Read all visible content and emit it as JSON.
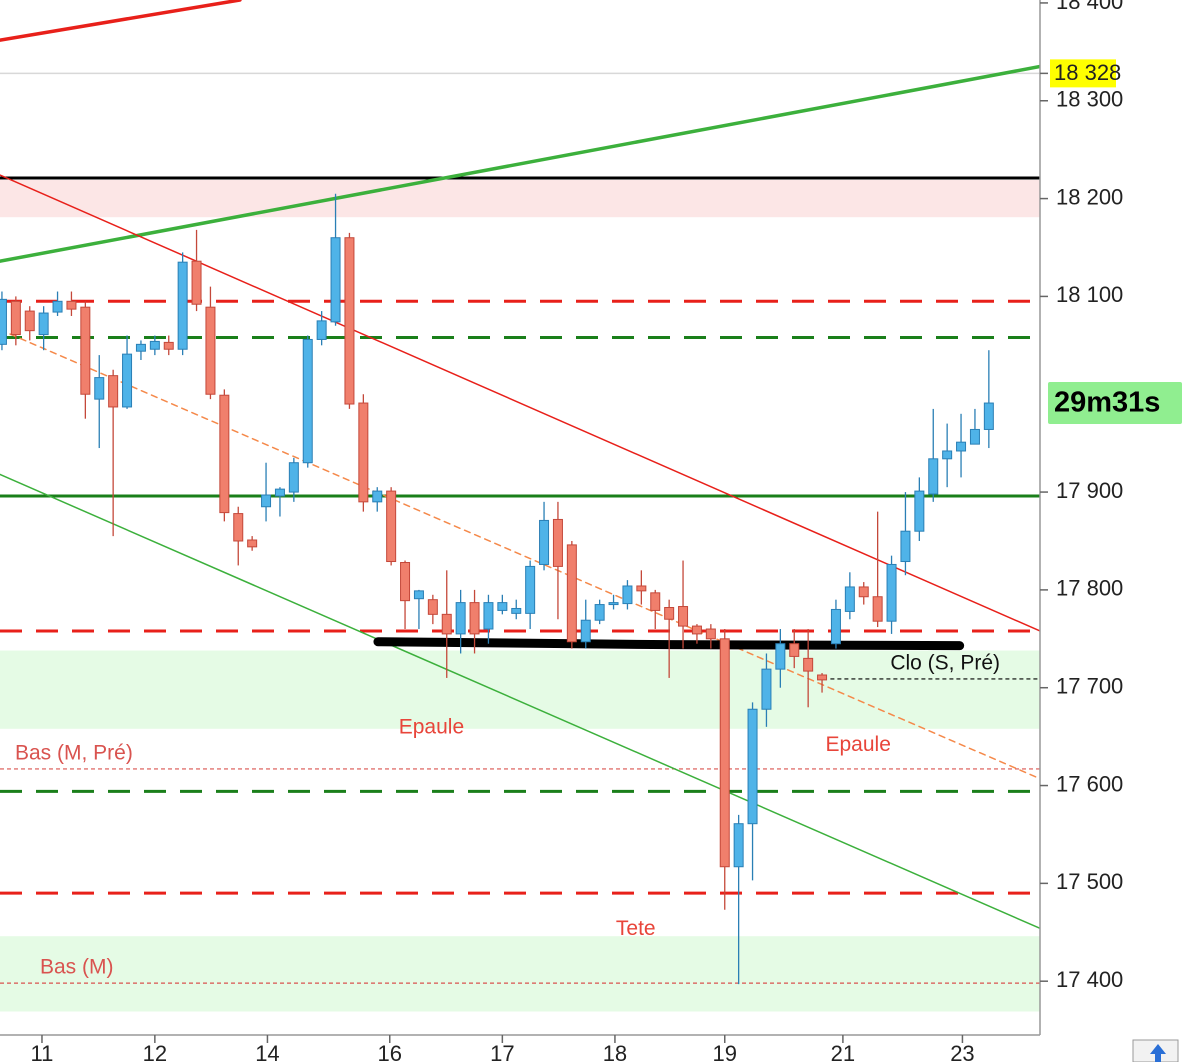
{
  "chart_data": {
    "type": "candlestick",
    "x": [
      0,
      1,
      2,
      3,
      4,
      5,
      6,
      7,
      8,
      9,
      10,
      11,
      12,
      13,
      14,
      15,
      16,
      17,
      18,
      19,
      20,
      21,
      22,
      23,
      24,
      25,
      26,
      27,
      28,
      29,
      30,
      31,
      32,
      33,
      34,
      35,
      36,
      37,
      38,
      39,
      40,
      41,
      42,
      43,
      44,
      45,
      46,
      47,
      48,
      49,
      50,
      51,
      52,
      53,
      54,
      55,
      56,
      57,
      58,
      59,
      60,
      61,
      62,
      63,
      64,
      65,
      66,
      67,
      68,
      69,
      70,
      71
    ],
    "open": [
      18051,
      18095,
      18085,
      18061,
      18084,
      18095,
      18089,
      17995,
      18019,
      17987,
      18044,
      18046,
      18053,
      18046,
      18136,
      18089,
      17999,
      17878,
      17851,
      17885,
      17896,
      17900,
      17930,
      18056,
      18074,
      18160,
      17991,
      17890,
      17901,
      17828,
      17791,
      17790,
      17775,
      17755,
      17787,
      17760,
      17779,
      17776,
      17776,
      17826,
      17872,
      17846,
      17747,
      17769,
      17785,
      17786,
      17804,
      17797,
      17782,
      17783,
      17763,
      17760,
      17750,
      17517,
      17561,
      17678,
      17719,
      17745,
      17730,
      17713,
      17745,
      17778,
      17803,
      17793,
      17768,
      17829,
      17860,
      17898,
      17934,
      17942,
      17949,
      17964
    ],
    "high": [
      18105,
      18100,
      18090,
      18090,
      18105,
      18105,
      18095,
      18040,
      18025,
      18060,
      18055,
      18060,
      18060,
      18145,
      18168,
      18110,
      18005,
      17885,
      17855,
      17930,
      17905,
      17935,
      18060,
      18085,
      18205,
      18165,
      18000,
      17905,
      17905,
      17830,
      17800,
      17795,
      17820,
      17800,
      17800,
      17795,
      17795,
      17790,
      17830,
      17890,
      17890,
      17850,
      17790,
      17790,
      17795,
      17810,
      17820,
      17800,
      17790,
      17830,
      17765,
      17765,
      17760,
      17570,
      17685,
      17735,
      17760,
      17760,
      17760,
      17715,
      17790,
      17818,
      17808,
      17880,
      17835,
      17900,
      17915,
      17985,
      17970,
      17980,
      17985,
      18045
    ],
    "low": [
      18045,
      18050,
      18055,
      18045,
      18080,
      18080,
      17975,
      17945,
      17855,
      17985,
      18035,
      18040,
      18040,
      18040,
      18085,
      17995,
      17870,
      17825,
      17840,
      17870,
      17875,
      17890,
      17925,
      18050,
      18070,
      17985,
      17880,
      17880,
      17825,
      17760,
      17760,
      17765,
      17710,
      17735,
      17735,
      17745,
      17775,
      17770,
      17760,
      17820,
      17770,
      17740,
      17740,
      17765,
      17780,
      17780,
      17785,
      17760,
      17710,
      17740,
      17745,
      17740,
      17473,
      17397,
      17503,
      17660,
      17700,
      17720,
      17680,
      17695,
      17740,
      17770,
      17785,
      17762,
      17755,
      17815,
      17850,
      17890,
      17905,
      17915,
      17950,
      17945
    ],
    "close": [
      18097,
      18061,
      18065,
      18083,
      18095,
      18087,
      18000,
      18017,
      17987,
      18041,
      18051,
      18054,
      18046,
      18135,
      18092,
      18000,
      17879,
      17850,
      17844,
      17897,
      17903,
      17930,
      18056,
      18075,
      18160,
      17990,
      17890,
      17901,
      17829,
      17789,
      17799,
      17775,
      17755,
      17787,
      17755,
      17787,
      17787,
      17781,
      17824,
      17871,
      17824,
      17747,
      17769,
      17785,
      17787,
      17804,
      17799,
      17779,
      17770,
      17763,
      17755,
      17750,
      17517,
      17561,
      17678,
      17719,
      17745,
      17732,
      17717,
      17708,
      17780,
      17803,
      17793,
      17768,
      17826,
      17860,
      17901,
      17934,
      17942,
      17951,
      17964,
      17991
    ],
    "up_color": "#4fb3e8",
    "down_color": "#f07f6c",
    "xlim": [
      -0.14,
      74.68
    ],
    "ylim": [
      17345,
      18403
    ],
    "xticks": [
      {
        "value": 2.88,
        "label": "11"
      },
      {
        "value": 11.0,
        "label": "12"
      },
      {
        "value": 19.1,
        "label": "14"
      },
      {
        "value": 27.9,
        "label": "16"
      },
      {
        "value": 36.0,
        "label": "17"
      },
      {
        "value": 44.1,
        "label": "18"
      },
      {
        "value": 52.0,
        "label": "19"
      },
      {
        "value": 60.5,
        "label": "21"
      },
      {
        "value": 69.1,
        "label": "23"
      }
    ],
    "yticks": [
      {
        "value": 17400,
        "label": "17 400"
      },
      {
        "value": 17500,
        "label": "17 500"
      },
      {
        "value": 17600,
        "label": "17 600"
      },
      {
        "value": 17700,
        "label": "17 700"
      },
      {
        "value": 17800,
        "label": "17 800"
      },
      {
        "value": 17900,
        "label": "17 900"
      },
      {
        "value": 18100,
        "label": "18 100"
      },
      {
        "value": 18200,
        "label": "18 200"
      },
      {
        "value": 18300,
        "label": "18 300"
      },
      {
        "value": 18400,
        "label": "18 400"
      }
    ],
    "zones": [
      {
        "from": 18181,
        "to": 18219,
        "color": "#fce6e6"
      },
      {
        "from": 17658,
        "to": 17738,
        "color": "#e5fbe5"
      },
      {
        "from": 17369,
        "to": 17446,
        "color": "#e5fbe5"
      }
    ],
    "levels": [
      {
        "value": 18221,
        "color": "#000000",
        "style": "solid"
      },
      {
        "value": 18095,
        "color": "#e8201a",
        "style": "dashed"
      },
      {
        "value": 18058,
        "color": "#1a7f1a",
        "style": "dashed"
      },
      {
        "value": 17896,
        "color": "#1a7f1a",
        "style": "solid"
      },
      {
        "value": 17758,
        "color": "#e8201a",
        "style": "dashed"
      },
      {
        "value": 17594,
        "color": "#1a7f1a",
        "style": "dashed"
      },
      {
        "value": 17490,
        "color": "#e8201a",
        "style": "dashed"
      },
      {
        "value": 17617,
        "color": "#d9534f",
        "style": "dotted",
        "label": "Bas (M, Pré)"
      },
      {
        "value": 17398,
        "color": "#d9534f",
        "style": "dotted",
        "label": "Bas (M)"
      },
      {
        "value": 17709,
        "color": "#000000",
        "style": "dotted",
        "label": "Clo (S, Pré)",
        "x_from": 59.6
      }
    ],
    "trendlines": [
      {
        "x": [
          -0.14,
          17.12
        ],
        "y": [
          18362,
          18403
        ],
        "color": "#e8201a",
        "weight": "thick"
      },
      {
        "x": [
          -0.14,
          74.68
        ],
        "y": [
          18136,
          18335
        ],
        "color": "#3cb03c",
        "weight": "thick"
      },
      {
        "x": [
          -0.14,
          74.68
        ],
        "y": [
          18224,
          17758
        ],
        "color": "#e8201a",
        "weight": "thin"
      },
      {
        "x": [
          -0.14,
          74.68
        ],
        "y": [
          17918,
          17454
        ],
        "color": "#3cb03c",
        "weight": "thin"
      },
      {
        "x": [
          -0.14,
          74.68
        ],
        "y": [
          18066,
          17607
        ],
        "color": "#f5894a",
        "weight": "dashed"
      },
      {
        "x": [
          27.05,
          48.0,
          68.9
        ],
        "y": [
          17747,
          17744,
          17743
        ],
        "color": "#000000",
        "weight": "marker"
      }
    ],
    "annotations": [
      {
        "text": "Epaule",
        "x": 30.9,
        "y": 17659,
        "color": "#e8453a"
      },
      {
        "text": "Epaule",
        "x": 61.6,
        "y": 17641,
        "color": "#e8453a"
      },
      {
        "text": "Tete",
        "x": 45.6,
        "y": 17453,
        "color": "#e8453a"
      }
    ],
    "price_marker": {
      "value": 18328,
      "label": "18 328",
      "color": "#ffff00"
    },
    "countdown": {
      "label": "29m31s",
      "color": "#90ee90"
    }
  }
}
